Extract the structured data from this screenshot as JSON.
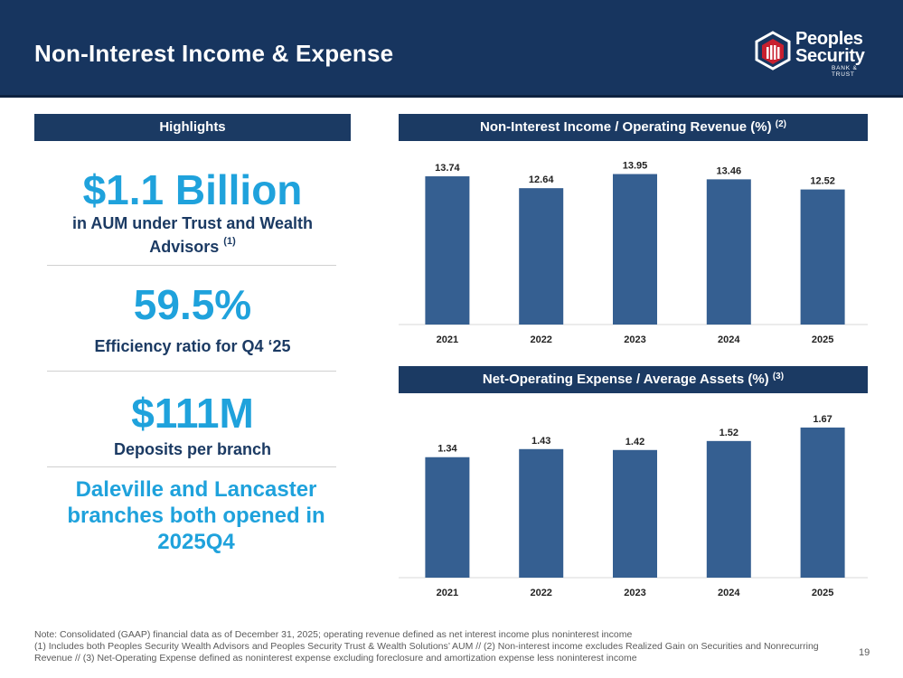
{
  "header": {
    "title": "Non-Interest Income & Expense"
  },
  "logo": {
    "line1": "Peoples",
    "line2": "Security",
    "sub": "BANK & TRUST"
  },
  "highlights": {
    "title": "Highlights",
    "items": [
      {
        "value": "$1.1 Billion",
        "desc": "in AUM under Trust and Wealth Advisors",
        "sup": "(1)"
      },
      {
        "value": "59.5%",
        "desc": "Efficiency ratio for Q4 ‘25"
      },
      {
        "value": "$111M",
        "desc": "Deposits per branch"
      }
    ],
    "callout": "Daleville and Lancaster branches both opened in 2025Q4"
  },
  "chart_data": [
    {
      "type": "bar",
      "title": "Non-Interest Income / Operating Revenue (%)",
      "title_sup": "(2)",
      "categories": [
        "2021",
        "2022",
        "2023",
        "2024",
        "2025"
      ],
      "values": [
        13.74,
        12.64,
        13.95,
        13.46,
        12.52
      ],
      "labels": [
        "13.74",
        "12.64",
        "13.95",
        "13.46",
        "12.52"
      ],
      "ylim": [
        0,
        15
      ],
      "grid": false,
      "color": "#355f91"
    },
    {
      "type": "bar",
      "title": "Net-Operating Expense / Average Assets (%)",
      "title_sup": "(3)",
      "categories": [
        "2021",
        "2022",
        "2023",
        "2024",
        "2025"
      ],
      "values": [
        1.34,
        1.43,
        1.42,
        1.52,
        1.67
      ],
      "labels": [
        "1.34",
        "1.43",
        "1.42",
        "1.52",
        "1.67"
      ],
      "ylim": [
        0,
        1.8
      ],
      "grid": false,
      "color": "#355f91"
    }
  ],
  "footer": {
    "note1": "Note: Consolidated (GAAP) financial data as of December 31, 2025; operating revenue defined as net interest income plus noninterest income",
    "note2": "(1) Includes both Peoples Security Wealth Advisors and Peoples Security Trust & Wealth Solutions’ AUM // (2) Non-interest income excludes Realized Gain on Securities and Nonrecurring Revenue // (3) Net-Operating Expense defined as noninterest expense excluding foreclosure and amortization expense less noninterest income",
    "page": "19"
  }
}
